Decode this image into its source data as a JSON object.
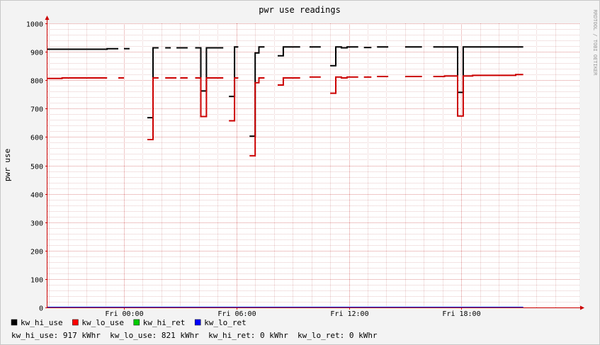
{
  "chart_data": {
    "type": "line",
    "title": "pwr use readings",
    "ylabel": "pwr use",
    "xlabel": "",
    "watermark": "RRDTOOL / TOBI OETIKER",
    "ylim": [
      0,
      1000
    ],
    "y_ticks": [
      0,
      100,
      200,
      300,
      400,
      500,
      600,
      700,
      800,
      900,
      1000
    ],
    "xlim_hours": [
      -4.08,
      24.3
    ],
    "x_ticks": [
      {
        "hour": 0,
        "label": "Fri 00:00"
      },
      {
        "hour": 6,
        "label": "Fri 06:00"
      },
      {
        "hour": 12,
        "label": "Fri 12:00"
      },
      {
        "hour": 18,
        "label": "Fri 18:00"
      }
    ],
    "grid": true,
    "legend_position": "bottom-left",
    "series": [
      {
        "name": "kw_hi_use",
        "color": "#000000",
        "segments": [
          [
            [
              -4.08,
              909
            ],
            [
              -0.9,
              909
            ],
            [
              -0.9,
              911
            ],
            [
              -0.3,
              911
            ]
          ],
          [
            [
              0.0,
              911
            ],
            [
              0.3,
              911
            ]
          ],
          [
            [
              1.25,
              668
            ],
            [
              1.55,
              668
            ],
            [
              1.55,
              914
            ],
            [
              1.85,
              914
            ]
          ],
          [
            [
              2.2,
              914
            ],
            [
              2.5,
              914
            ]
          ],
          [
            [
              2.8,
              914
            ],
            [
              3.4,
              914
            ]
          ],
          [
            [
              3.8,
              914
            ],
            [
              4.1,
              914
            ],
            [
              4.1,
              762
            ],
            [
              4.4,
              762
            ],
            [
              4.4,
              914
            ],
            [
              5.3,
              914
            ]
          ],
          [
            [
              5.6,
              743
            ],
            [
              5.9,
              743
            ],
            [
              5.9,
              917
            ],
            [
              6.1,
              917
            ]
          ],
          [
            [
              6.7,
              603
            ],
            [
              7.0,
              603
            ],
            [
              7.0,
              896
            ],
            [
              7.2,
              896
            ],
            [
              7.2,
              917
            ],
            [
              7.5,
              917
            ]
          ],
          [
            [
              8.2,
              886
            ],
            [
              8.5,
              886
            ],
            [
              8.5,
              917
            ],
            [
              9.4,
              917
            ]
          ],
          [
            [
              9.9,
              917
            ],
            [
              10.5,
              917
            ]
          ],
          [
            [
              11.0,
              851
            ],
            [
              11.3,
              851
            ],
            [
              11.3,
              917
            ],
            [
              11.6,
              917
            ],
            [
              11.6,
              914
            ],
            [
              11.9,
              914
            ],
            [
              11.9,
              917
            ],
            [
              12.5,
              917
            ]
          ],
          [
            [
              12.8,
              915
            ],
            [
              13.2,
              915
            ]
          ],
          [
            [
              13.5,
              917
            ],
            [
              14.1,
              917
            ]
          ],
          [
            [
              15.0,
              917
            ],
            [
              15.9,
              917
            ]
          ],
          [
            [
              16.5,
              917
            ],
            [
              17.8,
              917
            ],
            [
              17.8,
              757
            ],
            [
              18.1,
              757
            ],
            [
              18.1,
              917
            ],
            [
              21.3,
              917
            ]
          ]
        ]
      },
      {
        "name": "kw_lo_use",
        "color": "#cc0000",
        "segments": [
          [
            [
              -4.08,
              806
            ],
            [
              -3.3,
              806
            ],
            [
              -3.3,
              808
            ],
            [
              -0.9,
              808
            ]
          ],
          [
            [
              -0.3,
              808
            ],
            [
              0.0,
              808
            ]
          ],
          [
            [
              1.25,
              591
            ],
            [
              1.55,
              591
            ],
            [
              1.55,
              808
            ],
            [
              1.85,
              808
            ]
          ],
          [
            [
              2.2,
              808
            ],
            [
              2.8,
              808
            ]
          ],
          [
            [
              3.0,
              808
            ],
            [
              3.4,
              808
            ]
          ],
          [
            [
              3.8,
              808
            ],
            [
              4.1,
              808
            ],
            [
              4.1,
              672
            ],
            [
              4.4,
              672
            ],
            [
              4.4,
              808
            ],
            [
              5.3,
              808
            ]
          ],
          [
            [
              5.6,
              657
            ],
            [
              5.9,
              657
            ],
            [
              5.9,
              808
            ],
            [
              6.1,
              808
            ]
          ],
          [
            [
              6.7,
              534
            ],
            [
              7.0,
              534
            ],
            [
              7.0,
              791
            ],
            [
              7.2,
              791
            ],
            [
              7.2,
              808
            ],
            [
              7.5,
              808
            ]
          ],
          [
            [
              8.2,
              783
            ],
            [
              8.5,
              783
            ],
            [
              8.5,
              808
            ],
            [
              9.4,
              808
            ]
          ],
          [
            [
              9.9,
              811
            ],
            [
              10.5,
              811
            ]
          ],
          [
            [
              11.0,
              754
            ],
            [
              11.3,
              754
            ],
            [
              11.3,
              811
            ],
            [
              11.6,
              811
            ],
            [
              11.6,
              808
            ],
            [
              11.9,
              808
            ],
            [
              11.9,
              811
            ],
            [
              12.5,
              811
            ]
          ],
          [
            [
              12.8,
              811
            ],
            [
              13.2,
              811
            ]
          ],
          [
            [
              13.5,
              813
            ],
            [
              14.1,
              813
            ]
          ],
          [
            [
              15.0,
              813
            ],
            [
              15.9,
              813
            ]
          ],
          [
            [
              16.5,
              813
            ],
            [
              17.1,
              813
            ],
            [
              17.1,
              815
            ],
            [
              17.8,
              815
            ],
            [
              17.8,
              674
            ],
            [
              18.1,
              674
            ],
            [
              18.1,
              815
            ],
            [
              18.6,
              815
            ],
            [
              18.6,
              817
            ],
            [
              20.9,
              817
            ],
            [
              20.9,
              820
            ],
            [
              21.3,
              820
            ]
          ]
        ]
      },
      {
        "name": "kw_hi_ret",
        "color": "#00cc00",
        "segments": [
          [
            [
              -4.08,
              0
            ],
            [
              21.3,
              0
            ]
          ]
        ]
      },
      {
        "name": "kw_lo_ret",
        "color": "#0000ff",
        "segments": [
          [
            [
              -4.08,
              0
            ],
            [
              21.3,
              0
            ]
          ]
        ]
      }
    ],
    "legend": [
      {
        "name": "kw_hi_use",
        "color": "#000000"
      },
      {
        "name": "kw_lo_use",
        "color": "#ff0000"
      },
      {
        "name": "kw_hi_ret",
        "color": "#00cc00"
      },
      {
        "name": "kw_lo_ret",
        "color": "#0000ff"
      }
    ],
    "summary": "kw_hi_use: 917 kWhr  kw_lo_use: 821 kWhr  kw_hi_ret: 0 kWhr  kw_lo_ret: 0 kWhr"
  }
}
